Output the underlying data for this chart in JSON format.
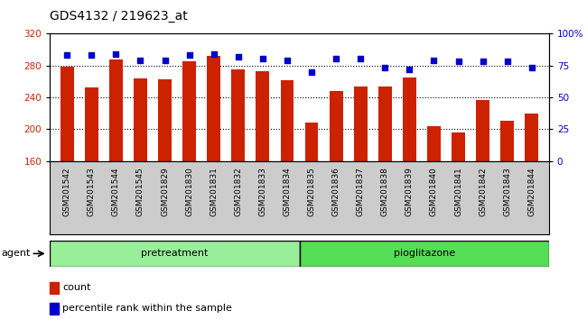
{
  "title": "GDS4132 / 219623_at",
  "categories": [
    "GSM201542",
    "GSM201543",
    "GSM201544",
    "GSM201545",
    "GSM201829",
    "GSM201830",
    "GSM201831",
    "GSM201832",
    "GSM201833",
    "GSM201834",
    "GSM201835",
    "GSM201836",
    "GSM201837",
    "GSM201838",
    "GSM201839",
    "GSM201840",
    "GSM201841",
    "GSM201842",
    "GSM201843",
    "GSM201844"
  ],
  "bar_values": [
    278,
    252,
    287,
    264,
    263,
    285,
    292,
    275,
    273,
    262,
    208,
    248,
    253,
    253,
    265,
    204,
    196,
    237,
    211,
    220
  ],
  "dot_values": [
    83,
    83,
    84,
    79,
    79,
    83,
    84,
    82,
    80,
    79,
    70,
    80,
    80,
    73,
    72,
    79,
    78,
    78,
    78,
    73
  ],
  "bar_color": "#cc2200",
  "dot_color": "#0000cc",
  "ylim_left": [
    160,
    320
  ],
  "ylim_right": [
    0,
    100
  ],
  "yticks_left": [
    160,
    200,
    240,
    280,
    320
  ],
  "yticks_right": [
    0,
    25,
    50,
    75,
    100
  ],
  "yticklabels_right": [
    "0",
    "25",
    "50",
    "75",
    "100%"
  ],
  "grid_values": [
    200,
    240,
    280
  ],
  "pretreatment_count": 10,
  "pioglitazone_count": 10,
  "group_label_pretreatment": "pretreatment",
  "group_label_pioglitazone": "pioglitazone",
  "agent_label": "agent",
  "legend_bar_label": "count",
  "legend_dot_label": "percentile rank within the sample",
  "bg_color": "#cccccc",
  "group_bar_color_pre": "#99ee99",
  "group_bar_color_pio": "#55dd55",
  "group_bar_outline": "#000000",
  "title_fontsize": 10,
  "tick_fontsize": 6.5,
  "axis_label_color_left": "#cc2200",
  "axis_label_color_right": "#0000cc"
}
